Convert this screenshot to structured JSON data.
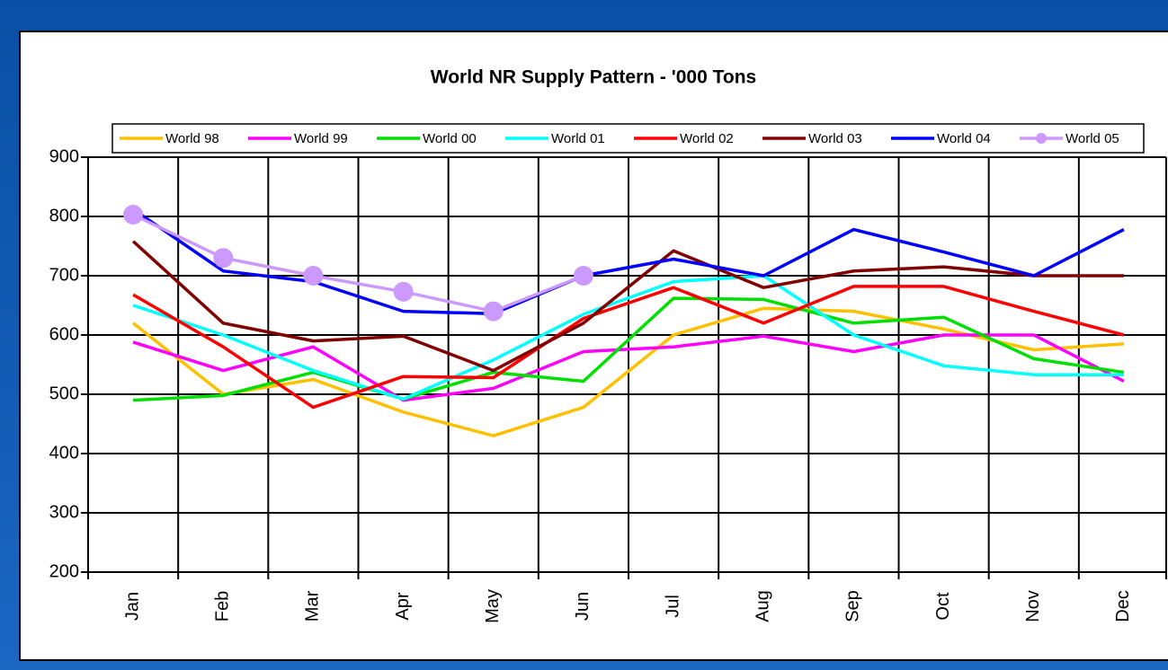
{
  "chart_data": {
    "type": "line",
    "title": "World NR Supply Pattern - '000 Tons",
    "categories": [
      "Jan",
      "Feb",
      "Mar",
      "Apr",
      "May",
      "Jun",
      "Jul",
      "Aug",
      "Sep",
      "Oct",
      "Nov",
      "Dec"
    ],
    "series": [
      {
        "name": "World 98",
        "color": "#ffc000",
        "values": [
          620,
          500,
          525,
          470,
          430,
          478,
          600,
          645,
          640,
          610,
          575,
          585
        ]
      },
      {
        "name": "World 99",
        "color": "#ff00ff",
        "values": [
          588,
          540,
          580,
          490,
          510,
          572,
          580,
          598,
          572,
          600,
          600,
          522
        ]
      },
      {
        "name": "World 00",
        "color": "#00e000",
        "values": [
          490,
          498,
          537,
          492,
          537,
          522,
          662,
          660,
          620,
          630,
          560,
          537
        ]
      },
      {
        "name": "World 01",
        "color": "#00ffff",
        "values": [
          650,
          600,
          540,
          492,
          558,
          635,
          690,
          700,
          600,
          548,
          533,
          533
        ]
      },
      {
        "name": "World 02",
        "color": "#ff0000",
        "values": [
          668,
          580,
          478,
          530,
          528,
          628,
          680,
          620,
          682,
          682,
          640,
          600
        ]
      },
      {
        "name": "World 03",
        "color": "#800000",
        "values": [
          758,
          620,
          590,
          598,
          540,
          620,
          742,
          680,
          708,
          715,
          700,
          700
        ]
      },
      {
        "name": "World 04",
        "color": "#0000ff",
        "values": [
          812,
          708,
          690,
          640,
          636,
          700,
          728,
          700,
          778,
          740,
          700,
          778
        ]
      },
      {
        "name": "World 05",
        "color": "#cc99ff",
        "markers": true,
        "values": [
          803,
          730,
          700,
          673,
          640,
          700,
          null,
          null,
          null,
          null,
          null,
          null
        ]
      }
    ],
    "ylim": [
      200,
      900
    ],
    "yticks": [
      200,
      300,
      400,
      500,
      600,
      700,
      800,
      900
    ],
    "grid": true
  }
}
